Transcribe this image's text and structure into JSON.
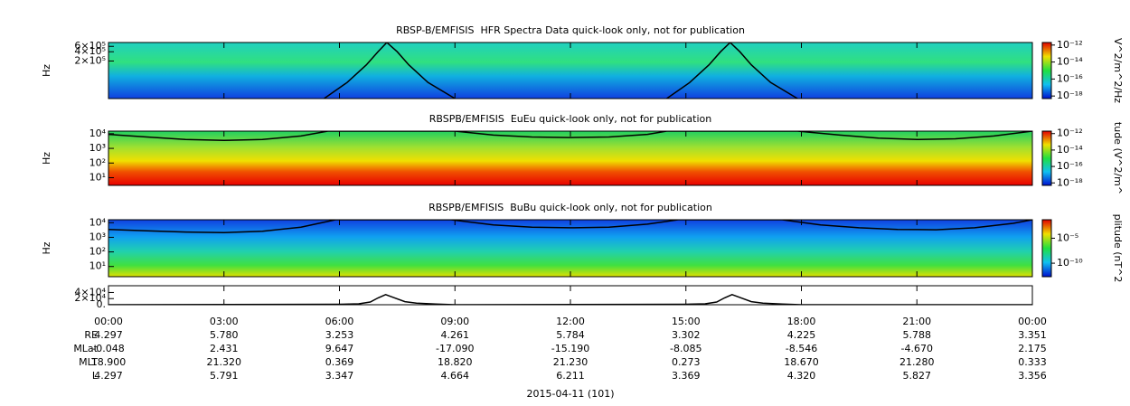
{
  "chart_data": [
    {
      "type": "spectrogram",
      "title": "RBSP-B/EMFISIS  HFR Spectra Data quick-look only, not for publication",
      "ylabel": "Hz",
      "ylog": true,
      "xlim": [
        0,
        24
      ],
      "ylim": [
        12000,
        800000
      ],
      "yticks": [
        {
          "value": 600000,
          "label": "6×10⁵"
        },
        {
          "value": 400000,
          "label": "4×10⁵"
        },
        {
          "value": 200000,
          "label": "2×10⁵"
        }
      ],
      "colorbar": {
        "label": "V^2/m^2/Hz",
        "lim": [
          5e-19,
          2e-12
        ],
        "ticks": [
          {
            "value": 1e-12,
            "label": "10⁻¹²"
          },
          {
            "value": 1e-14,
            "label": "10⁻¹⁴"
          },
          {
            "value": 1e-16,
            "label": "10⁻¹⁶"
          },
          {
            "value": 1e-18,
            "label": "10⁻¹⁸"
          }
        ]
      },
      "series": [
        {
          "color": "#000000",
          "x": [
            5.6,
            6.2,
            6.7,
            7.0,
            7.23,
            7.5,
            7.8,
            8.3,
            9.0,
            null,
            14.5,
            15.1,
            15.6,
            15.9,
            16.15,
            16.4,
            16.7,
            17.2,
            17.9
          ],
          "values": [
            12000,
            40000,
            150000,
            400000,
            800000,
            400000,
            150000,
            40000,
            12000,
            null,
            12000,
            40000,
            150000,
            400000,
            800000,
            400000,
            150000,
            40000,
            12000
          ]
        }
      ]
    },
    {
      "type": "spectrogram",
      "title": "RBSPB/EMFISIS  EuEu quick-look only, not for publication",
      "ylabel": "Hz",
      "ylog": true,
      "xlim": [
        0,
        24
      ],
      "ylim": [
        3,
        15000
      ],
      "yticks": [
        {
          "value": 10000,
          "label": "10⁴"
        },
        {
          "value": 1000,
          "label": "10³"
        },
        {
          "value": 100,
          "label": "10²"
        },
        {
          "value": 10,
          "label": "10¹"
        }
      ],
      "colorbar": {
        "label": "tude (V^2/m^",
        "lim": [
          5e-19,
          2e-12
        ],
        "ticks": [
          {
            "value": 1e-12,
            "label": "10⁻¹²"
          },
          {
            "value": 1e-14,
            "label": "10⁻¹⁴"
          },
          {
            "value": 1e-16,
            "label": "10⁻¹⁶"
          },
          {
            "value": 1e-18,
            "label": "10⁻¹⁸"
          }
        ]
      },
      "series": [
        {
          "color": "#000000",
          "x": [
            0,
            1,
            2,
            3,
            4,
            5,
            5.7,
            9.0,
            10,
            11,
            12,
            13,
            14,
            14.5,
            17.9,
            19,
            20,
            21,
            22,
            23,
            24
          ],
          "values": [
            9000,
            6000,
            4000,
            3500,
            4000,
            7000,
            15000,
            15000,
            8000,
            6000,
            5500,
            6000,
            9000,
            15000,
            15000,
            8000,
            5000,
            4000,
            4500,
            7000,
            15000
          ]
        }
      ]
    },
    {
      "type": "spectrogram",
      "title": "RBSPB/EMFISIS  BuBu quick-look only, not for publication",
      "ylabel": "Hz",
      "ylog": true,
      "xlim": [
        0,
        24
      ],
      "ylim": [
        2,
        16000
      ],
      "yticks": [
        {
          "value": 10000,
          "label": "10⁴"
        },
        {
          "value": 1000,
          "label": "10³"
        },
        {
          "value": 100,
          "label": "10²"
        },
        {
          "value": 10,
          "label": "10¹"
        }
      ],
      "colorbar": {
        "label": "plitude (nT^2",
        "lim": [
          2e-13,
          0.05
        ],
        "ticks": [
          {
            "value": 1e-05,
            "label": "10⁻⁵"
          },
          {
            "value": 1e-10,
            "label": "10⁻¹⁰"
          }
        ]
      },
      "series": [
        {
          "color": "#000000",
          "x": [
            0,
            1,
            2,
            3,
            4,
            5,
            5.9,
            8.9,
            10,
            11,
            12,
            13,
            14,
            14.8,
            17.5,
            18.5,
            19.5,
            20.5,
            21.5,
            22.5,
            23.5,
            24
          ],
          "values": [
            3500,
            2800,
            2300,
            2100,
            2600,
            5000,
            16000,
            16000,
            7000,
            5000,
            4500,
            5000,
            8000,
            16000,
            16000,
            7000,
            4500,
            3500,
            3300,
            4500,
            9000,
            16000
          ]
        }
      ]
    },
    {
      "type": "line",
      "xlim": [
        0,
        24
      ],
      "ylim": [
        0,
        62000
      ],
      "yticks": [
        {
          "value": 40000,
          "label": "4×10⁴"
        },
        {
          "value": 20000,
          "label": "2×10⁴"
        },
        {
          "value": 0,
          "label": "0."
        }
      ],
      "xticks": [
        {
          "value": 0,
          "label": "00:00"
        },
        {
          "value": 3,
          "label": "03:00"
        },
        {
          "value": 6,
          "label": "06:00"
        },
        {
          "value": 9,
          "label": "09:00"
        },
        {
          "value": 12,
          "label": "12:00"
        },
        {
          "value": 15,
          "label": "15:00"
        },
        {
          "value": 18,
          "label": "18:00"
        },
        {
          "value": 21,
          "label": "21:00"
        },
        {
          "value": 24,
          "label": "00:00"
        }
      ],
      "series": [
        {
          "color": "#000000",
          "x": [
            0,
            6.0,
            6.5,
            6.8,
            7.0,
            7.2,
            7.4,
            7.7,
            8.0,
            8.5,
            9.0,
            15.0,
            15.5,
            15.8,
            16.0,
            16.2,
            16.4,
            16.7,
            17.0,
            17.5,
            18.0,
            24
          ],
          "values": [
            0,
            1500,
            3000,
            9000,
            22000,
            33000,
            24000,
            10000,
            5000,
            2500,
            0,
            1500,
            3000,
            9000,
            22000,
            33000,
            24000,
            10000,
            5000,
            2500,
            0,
            0
          ]
        }
      ]
    }
  ],
  "ephemeris": {
    "rows": [
      {
        "label": "RE",
        "values": [
          "4.297",
          "5.780",
          "3.253",
          "4.261",
          "5.784",
          "3.302",
          "4.225",
          "5.788",
          "3.351"
        ]
      },
      {
        "label": "MLat",
        "values": [
          "-0.048",
          "2.431",
          "9.647",
          "-17.090",
          "-15.190",
          "-8.085",
          "-8.546",
          "-4.670",
          "2.175"
        ]
      },
      {
        "label": "MLT",
        "values": [
          "18.900",
          "21.320",
          "0.369",
          "18.820",
          "21.230",
          "0.273",
          "18.670",
          "21.280",
          "0.333"
        ]
      },
      {
        "label": "L",
        "values": [
          "4.297",
          "5.791",
          "3.347",
          "4.664",
          "6.211",
          "3.369",
          "4.320",
          "5.827",
          "3.356"
        ]
      }
    ]
  },
  "date_label": "2015-04-11 (101)"
}
